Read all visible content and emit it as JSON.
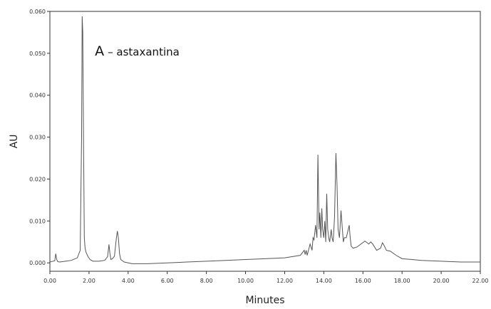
{
  "chart_data": {
    "type": "line",
    "title": "",
    "xlabel": "Minutes",
    "ylabel": "AU",
    "xlim": [
      0,
      22
    ],
    "ylim": [
      -0.002,
      0.06
    ],
    "x_ticks": [
      "0.00",
      "2.00",
      "4.00",
      "6.00",
      "8.00",
      "10.00",
      "12.00",
      "14.00",
      "16.00",
      "18.00",
      "20.00",
      "22.00"
    ],
    "y_ticks": [
      "0.000",
      "0.010",
      "0.020",
      "0.030",
      "0.040",
      "0.050",
      "0.060"
    ],
    "grid": false,
    "legend": "none",
    "line_color": "#555555",
    "annotation": {
      "letter": "A",
      "text": "– astaxantina",
      "x": 2.3,
      "y": 0.0505
    },
    "series": [
      {
        "x": [
          0.0,
          0.25,
          0.3,
          0.35,
          0.4,
          0.5,
          0.8,
          1.1,
          1.4,
          1.55,
          1.62,
          1.65,
          1.68,
          1.72,
          1.76,
          1.8,
          1.85,
          1.95,
          2.05,
          2.2,
          2.5,
          2.8,
          2.95,
          3.02,
          3.07,
          3.12,
          3.2,
          3.3,
          3.4,
          3.45,
          3.5,
          3.56,
          3.62,
          3.8,
          4.2,
          5.0,
          6.0,
          7.0,
          8.0,
          9.0,
          10.0,
          11.0,
          12.0,
          12.8,
          13.0,
          13.05,
          13.1,
          13.15,
          13.3,
          13.4,
          13.45,
          13.5,
          13.58,
          13.65,
          13.7,
          13.73,
          13.76,
          13.8,
          13.85,
          13.9,
          13.94,
          14.0,
          14.05,
          14.1,
          14.15,
          14.2,
          14.25,
          14.3,
          14.38,
          14.42,
          14.48,
          14.55,
          14.62,
          14.68,
          14.73,
          14.8,
          14.88,
          14.95,
          15.0,
          15.05,
          15.15,
          15.25,
          15.3,
          15.35,
          15.4,
          15.5,
          15.7,
          15.9,
          16.1,
          16.3,
          16.4,
          16.5,
          16.7,
          16.9,
          17.0,
          17.1,
          17.2,
          17.4,
          17.7,
          18.0,
          18.5,
          19.0,
          20.0,
          21.0,
          22.0
        ],
        "y": [
          0.0002,
          0.0005,
          0.0022,
          0.0008,
          0.0003,
          0.0002,
          0.0004,
          0.0006,
          0.0012,
          0.003,
          0.03,
          0.0588,
          0.0552,
          0.029,
          0.006,
          0.0035,
          0.0025,
          0.0015,
          0.0008,
          0.0004,
          0.0004,
          0.0006,
          0.0015,
          0.0044,
          0.0022,
          0.0008,
          0.001,
          0.0016,
          0.006,
          0.0076,
          0.006,
          0.0022,
          0.0008,
          0.0002,
          -0.0002,
          -0.0002,
          0.0,
          0.0002,
          0.0004,
          0.0006,
          0.0008,
          0.001,
          0.0012,
          0.0018,
          0.003,
          0.002,
          0.003,
          0.0018,
          0.0045,
          0.003,
          0.006,
          0.0055,
          0.009,
          0.006,
          0.0258,
          0.017,
          0.008,
          0.012,
          0.006,
          0.013,
          0.008,
          0.006,
          0.01,
          0.005,
          0.0165,
          0.008,
          0.006,
          0.005,
          0.008,
          0.006,
          0.005,
          0.011,
          0.0262,
          0.018,
          0.008,
          0.006,
          0.0125,
          0.008,
          0.005,
          0.006,
          0.006,
          0.008,
          0.009,
          0.006,
          0.004,
          0.0035,
          0.0038,
          0.0045,
          0.0052,
          0.0045,
          0.005,
          0.0045,
          0.003,
          0.0035,
          0.0048,
          0.004,
          0.003,
          0.0028,
          0.0018,
          0.001,
          0.0008,
          0.0006,
          0.0004,
          0.0002,
          0.0002
        ]
      }
    ]
  }
}
